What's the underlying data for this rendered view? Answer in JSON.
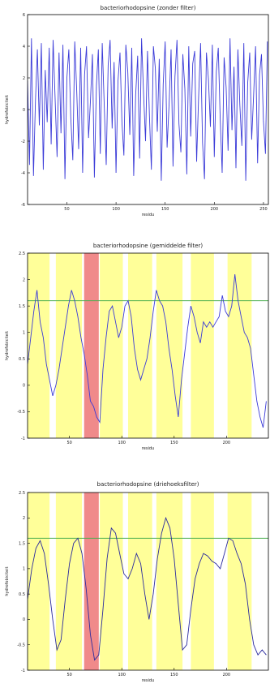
{
  "chart_data": [
    {
      "type": "line",
      "title": "bacteriorhodopsine (zonder filter)",
      "xlabel": "residu",
      "ylabel": "hydrofobiciteit",
      "xlim": [
        10,
        255
      ],
      "ylim": [
        -6,
        6
      ],
      "xticks": [
        50,
        100,
        150,
        200,
        250
      ],
      "yticks": [
        -6,
        -4,
        -2,
        0,
        2,
        4,
        6
      ],
      "line_color": "#3b3bd8",
      "bands": [],
      "threshold": null,
      "series": [
        {
          "x": [
            10,
            12,
            14,
            16,
            18,
            20,
            22,
            24,
            26,
            28,
            30,
            32,
            34,
            36,
            38,
            40,
            42,
            44,
            46,
            48,
            50,
            52,
            54,
            56,
            58,
            60,
            62,
            64,
            66,
            68,
            70,
            72,
            74,
            76,
            78,
            80,
            82,
            84,
            86,
            88,
            90,
            92,
            94,
            96,
            98,
            100,
            102,
            104,
            106,
            108,
            110,
            112,
            114,
            116,
            118,
            120,
            122,
            124,
            126,
            128,
            130,
            132,
            134,
            136,
            138,
            140,
            142,
            144,
            146,
            148,
            150,
            152,
            154,
            156,
            158,
            160,
            162,
            164,
            166,
            168,
            170,
            172,
            174,
            176,
            178,
            180,
            182,
            184,
            186,
            188,
            190,
            192,
            194,
            196,
            198,
            200,
            202,
            204,
            206,
            208,
            210,
            212,
            214,
            216,
            218,
            220,
            222,
            224,
            226,
            228,
            230,
            232,
            234,
            236,
            238,
            240,
            242,
            244,
            246,
            248,
            250,
            252,
            254
          ],
          "y": [
            1.8,
            -3.5,
            4.5,
            -4.2,
            0.5,
            3.8,
            -1.0,
            4.2,
            -3.8,
            2.5,
            -0.8,
            3.9,
            -2.2,
            4.4,
            0.8,
            -3.0,
            3.6,
            -1.5,
            4.1,
            -4.4,
            2.0,
            3.8,
            -0.5,
            -3.2,
            4.3,
            1.2,
            -2.5,
            3.9,
            -4.0,
            2.2,
            4.0,
            -1.8,
            0.6,
            3.5,
            -4.3,
            1.5,
            3.8,
            -2.8,
            4.2,
            0.2,
            -3.5,
            2.8,
            4.4,
            -1.2,
            3.0,
            -4.0,
            1.8,
            3.6,
            -0.8,
            -2.9,
            4.1,
            2.4,
            -1.6,
            3.9,
            -4.2,
            0.9,
            3.4,
            -3.1,
            4.5,
            1.1,
            -2.0,
            3.7,
            -0.4,
            -3.8,
            4.0,
            2.6,
            -1.4,
            3.2,
            -4.5,
            1.6,
            4.3,
            -2.4,
            0.4,
            3.8,
            -3.6,
            2.1,
            4.4,
            -0.9,
            -2.7,
            3.5,
            1.3,
            -4.1,
            4.0,
            -1.7,
            2.9,
            3.7,
            -3.3,
            0.7,
            4.2,
            -2.1,
            -4.4,
            3.6,
            1.9,
            -1.1,
            4.1,
            -3.0,
            2.4,
            3.9,
            -0.6,
            -4.0,
            3.3,
            1.4,
            -2.6,
            4.5,
            -1.3,
            2.7,
            -3.7,
            3.8,
            0.3,
            -2.3,
            4.2,
            -4.5,
            1.7,
            3.6,
            -1.9,
            0.9,
            4.0,
            -3.4,
            2.2,
            3.5,
            -0.7,
            -2.8,
            4.3
          ]
        }
      ]
    },
    {
      "type": "line",
      "title": "bacteriorhodopsine (gemiddelde filter)",
      "xlabel": "residu",
      "ylabel": "hydrofobiciteit",
      "xlim": [
        10,
        240
      ],
      "ylim": [
        -1.0,
        2.5
      ],
      "xticks": [
        50,
        100,
        150,
        200
      ],
      "yticks": [
        -1.0,
        -0.5,
        0.0,
        0.5,
        1.0,
        1.5,
        2.0,
        2.5
      ],
      "line_color": "#3b3bd8",
      "threshold": 1.6,
      "threshold_color": "#4caf50",
      "band_colors": {
        "helix": "#ffff99",
        "highlight": "#f08a8a"
      },
      "bands": [
        {
          "x0": 10,
          "x1": 31,
          "kind": "helix"
        },
        {
          "x0": 37,
          "x1": 62,
          "kind": "helix"
        },
        {
          "x0": 64,
          "x1": 78,
          "kind": "highlight"
        },
        {
          "x0": 79,
          "x1": 101,
          "kind": "helix"
        },
        {
          "x0": 106,
          "x1": 129,
          "kind": "helix"
        },
        {
          "x0": 133,
          "x1": 158,
          "kind": "helix"
        },
        {
          "x0": 166,
          "x1": 188,
          "kind": "helix"
        },
        {
          "x0": 201,
          "x1": 224,
          "kind": "helix"
        }
      ],
      "series": [
        {
          "x": [
            10,
            13,
            16,
            19,
            22,
            25,
            28,
            31,
            34,
            37,
            40,
            43,
            46,
            49,
            52,
            55,
            58,
            61,
            64,
            67,
            70,
            73,
            76,
            79,
            82,
            85,
            88,
            91,
            94,
            97,
            100,
            103,
            106,
            109,
            112,
            115,
            118,
            121,
            124,
            127,
            130,
            133,
            136,
            139,
            142,
            145,
            148,
            151,
            154,
            157,
            160,
            163,
            166,
            169,
            172,
            175,
            178,
            181,
            184,
            187,
            190,
            193,
            196,
            199,
            202,
            205,
            208,
            211,
            214,
            217,
            220,
            223,
            226,
            229,
            232,
            235,
            238
          ],
          "y": [
            0.4,
            0.9,
            1.4,
            1.8,
            1.2,
            0.9,
            0.4,
            0.1,
            -0.2,
            0.0,
            0.3,
            0.7,
            1.1,
            1.5,
            1.8,
            1.6,
            1.3,
            0.9,
            0.6,
            0.2,
            -0.3,
            -0.4,
            -0.6,
            -0.7,
            0.3,
            0.9,
            1.4,
            1.5,
            1.2,
            0.9,
            1.1,
            1.5,
            1.6,
            1.3,
            0.7,
            0.3,
            0.1,
            0.3,
            0.5,
            0.9,
            1.4,
            1.8,
            1.6,
            1.5,
            1.2,
            0.7,
            0.3,
            -0.2,
            -0.6,
            0.1,
            0.6,
            1.1,
            1.5,
            1.3,
            1.0,
            0.8,
            1.2,
            1.1,
            1.2,
            1.1,
            1.2,
            1.3,
            1.7,
            1.4,
            1.3,
            1.5,
            2.1,
            1.6,
            1.3,
            1.0,
            0.9,
            0.7,
            0.2,
            -0.3,
            -0.6,
            -0.8,
            -0.3
          ]
        }
      ]
    },
    {
      "type": "line",
      "title": "bacteriorhodopsine (driehoeksfilter)",
      "xlabel": "residu",
      "ylabel": "hydrofobiciteit",
      "xlim": [
        10,
        240
      ],
      "ylim": [
        -1.0,
        2.5
      ],
      "xticks": [
        50,
        100,
        150,
        200
      ],
      "yticks": [
        -1.0,
        -0.5,
        0.0,
        0.5,
        1.0,
        1.5,
        2.0,
        2.5
      ],
      "line_color": "#2b2b9e",
      "threshold": 1.6,
      "threshold_color": "#4caf50",
      "band_colors": {
        "helix": "#ffff99",
        "highlight": "#f08a8a"
      },
      "bands": [
        {
          "x0": 10,
          "x1": 31,
          "kind": "helix"
        },
        {
          "x0": 37,
          "x1": 62,
          "kind": "helix"
        },
        {
          "x0": 64,
          "x1": 78,
          "kind": "highlight"
        },
        {
          "x0": 79,
          "x1": 101,
          "kind": "helix"
        },
        {
          "x0": 106,
          "x1": 129,
          "kind": "helix"
        },
        {
          "x0": 133,
          "x1": 158,
          "kind": "helix"
        },
        {
          "x0": 166,
          "x1": 188,
          "kind": "helix"
        },
        {
          "x0": 201,
          "x1": 224,
          "kind": "helix"
        }
      ],
      "series": [
        {
          "x": [
            10,
            14,
            18,
            22,
            26,
            30,
            34,
            38,
            42,
            46,
            50,
            54,
            58,
            62,
            66,
            70,
            74,
            78,
            82,
            86,
            90,
            94,
            98,
            102,
            106,
            110,
            114,
            118,
            122,
            126,
            130,
            134,
            138,
            142,
            146,
            150,
            154,
            158,
            162,
            166,
            170,
            174,
            178,
            182,
            186,
            190,
            194,
            198,
            202,
            206,
            210,
            214,
            218,
            222,
            226,
            230,
            234,
            238
          ],
          "y": [
            0.4,
            1.0,
            1.4,
            1.55,
            1.3,
            0.7,
            0.0,
            -0.6,
            -0.4,
            0.4,
            1.1,
            1.5,
            1.6,
            1.3,
            0.6,
            -0.3,
            -0.8,
            -0.7,
            0.2,
            1.2,
            1.8,
            1.7,
            1.3,
            0.9,
            0.8,
            1.0,
            1.3,
            1.1,
            0.5,
            0.0,
            0.5,
            1.2,
            1.7,
            2.0,
            1.8,
            1.2,
            0.3,
            -0.6,
            -0.5,
            0.2,
            0.8,
            1.1,
            1.3,
            1.25,
            1.15,
            1.1,
            1.0,
            1.3,
            1.6,
            1.55,
            1.3,
            1.1,
            0.7,
            0.0,
            -0.5,
            -0.7,
            -0.6,
            -0.7
          ]
        }
      ]
    }
  ]
}
